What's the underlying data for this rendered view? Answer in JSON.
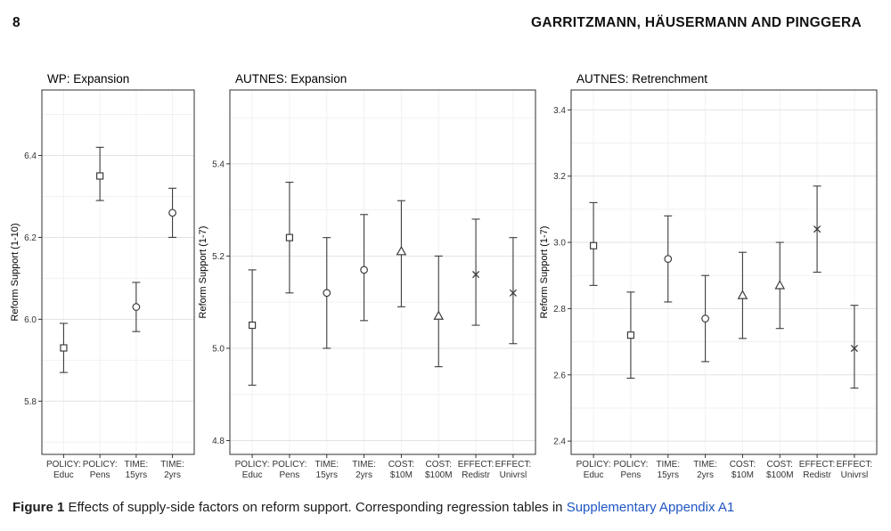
{
  "header": {
    "page_number": "8",
    "running_head": "GARRITZMANN, HÄUSERMANN AND PINGGERA"
  },
  "caption": {
    "label": "Figure 1",
    "text": " Effects of supply-side factors on reform support. Corresponding regression tables in ",
    "link_text": "Supplementary Appendix A1",
    "link_color": "#1f56c4"
  },
  "colors": {
    "point": "#3d3d3d",
    "panel_border": "#2f2f2f",
    "grid_major": "#e2e2e2",
    "grid_minor": "#f1f1f1",
    "axis_text": "#333333",
    "tick": "#333333",
    "title_text": "#000000"
  },
  "chart_data": [
    {
      "type": "scatter",
      "title": "WP: Expansion",
      "ylabel": "Reform Support (1-10)",
      "ylim": [
        5.67,
        6.56
      ],
      "yticks": [
        5.8,
        6.0,
        6.2,
        6.4
      ],
      "grid": true,
      "legend": "none",
      "points": [
        {
          "label_line1": "POLICY:",
          "label_line2": "Educ",
          "marker": "square",
          "value": 5.93,
          "lo": 5.87,
          "hi": 5.99
        },
        {
          "label_line1": "POLICY:",
          "label_line2": "Pens",
          "marker": "square",
          "value": 6.35,
          "lo": 6.29,
          "hi": 6.42
        },
        {
          "label_line1": "TIME:",
          "label_line2": "15yrs",
          "marker": "circle",
          "value": 6.03,
          "lo": 5.97,
          "hi": 6.09
        },
        {
          "label_line1": "TIME:",
          "label_line2": "2yrs",
          "marker": "circle",
          "value": 6.26,
          "lo": 6.2,
          "hi": 6.32
        }
      ]
    },
    {
      "type": "scatter",
      "title": "AUTNES: Expansion",
      "ylabel": "Reform Support (1-7)",
      "ylim": [
        4.77,
        5.56
      ],
      "yticks": [
        4.8,
        5.0,
        5.2,
        5.4
      ],
      "grid": true,
      "legend": "none",
      "points": [
        {
          "label_line1": "POLICY:",
          "label_line2": "Educ",
          "marker": "square",
          "value": 5.05,
          "lo": 4.92,
          "hi": 5.17
        },
        {
          "label_line1": "POLICY:",
          "label_line2": "Pens",
          "marker": "square",
          "value": 5.24,
          "lo": 5.12,
          "hi": 5.36
        },
        {
          "label_line1": "TIME:",
          "label_line2": "15yrs",
          "marker": "circle",
          "value": 5.12,
          "lo": 5.0,
          "hi": 5.24
        },
        {
          "label_line1": "TIME:",
          "label_line2": "2yrs",
          "marker": "circle",
          "value": 5.17,
          "lo": 5.06,
          "hi": 5.29
        },
        {
          "label_line1": "COST:",
          "label_line2": "$10M",
          "marker": "triangle",
          "value": 5.21,
          "lo": 5.09,
          "hi": 5.32
        },
        {
          "label_line1": "COST:",
          "label_line2": "$100M",
          "marker": "triangle",
          "value": 5.07,
          "lo": 4.96,
          "hi": 5.2
        },
        {
          "label_line1": "EFFECT:",
          "label_line2": "Redistr",
          "marker": "x",
          "value": 5.16,
          "lo": 5.05,
          "hi": 5.28
        },
        {
          "label_line1": "EFFECT:",
          "label_line2": "Univrsl",
          "marker": "x",
          "value": 5.12,
          "lo": 5.01,
          "hi": 5.24
        }
      ]
    },
    {
      "type": "scatter",
      "title": "AUTNES: Retrenchment",
      "ylabel": "Reform Support (1-7)",
      "ylim": [
        2.36,
        3.46
      ],
      "yticks": [
        2.4,
        2.6,
        2.8,
        3.0,
        3.2,
        3.4
      ],
      "grid": true,
      "legend": "none",
      "points": [
        {
          "label_line1": "POLICY:",
          "label_line2": "Educ",
          "marker": "square",
          "value": 2.99,
          "lo": 2.87,
          "hi": 3.12
        },
        {
          "label_line1": "POLICY:",
          "label_line2": "Pens",
          "marker": "square",
          "value": 2.72,
          "lo": 2.59,
          "hi": 2.85
        },
        {
          "label_line1": "TIME:",
          "label_line2": "15yrs",
          "marker": "circle",
          "value": 2.95,
          "lo": 2.82,
          "hi": 3.08
        },
        {
          "label_line1": "TIME:",
          "label_line2": "2yrs",
          "marker": "circle",
          "value": 2.77,
          "lo": 2.64,
          "hi": 2.9
        },
        {
          "label_line1": "COST:",
          "label_line2": "$10M",
          "marker": "triangle",
          "value": 2.84,
          "lo": 2.71,
          "hi": 2.97
        },
        {
          "label_line1": "COST:",
          "label_line2": "$100M",
          "marker": "triangle",
          "value": 2.87,
          "lo": 2.74,
          "hi": 3.0
        },
        {
          "label_line1": "EFFECT:",
          "label_line2": "Redistr",
          "marker": "x",
          "value": 3.04,
          "lo": 2.91,
          "hi": 3.17
        },
        {
          "label_line1": "EFFECT:",
          "label_line2": "Univrsl",
          "marker": "x",
          "value": 2.68,
          "lo": 2.56,
          "hi": 2.81
        }
      ]
    }
  ]
}
